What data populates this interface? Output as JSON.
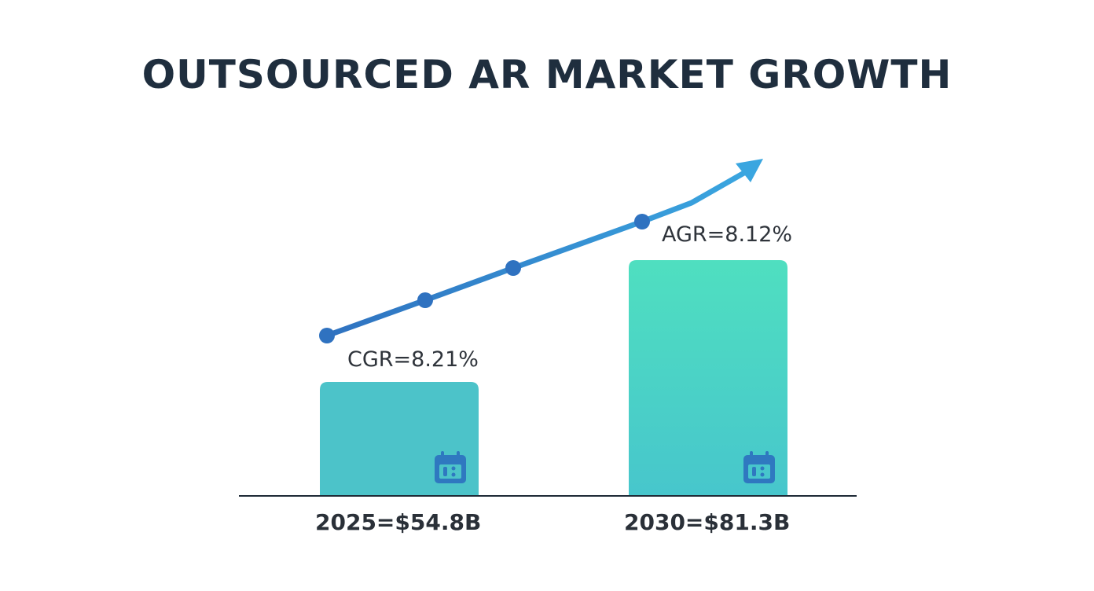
{
  "chart_data": {
    "type": "bar",
    "title": "OUTSOURCED AR MARKET GROWTH",
    "categories": [
      "2025",
      "2030"
    ],
    "values": [
      54.8,
      81.3
    ],
    "unit": "$B",
    "bar_labels": [
      "2025=$54.8B",
      "2030=$81.3B"
    ],
    "annotations": [
      "CGR=8.21%",
      "AGR=8.12%"
    ],
    "trend": "upward arrow",
    "grid": false,
    "icons": [
      "calendar-icon",
      "calendar-icon"
    ],
    "colors": {
      "bar_2025": "#4cc3c9",
      "bar_2030_top": "#4fdfc0",
      "bar_2030_bottom": "#47c6cc",
      "trend_line": "#2f72c0",
      "arrow": "#3aa6e0",
      "calendar_icon": "#2f78c0",
      "title": "#1f2e3e"
    }
  }
}
